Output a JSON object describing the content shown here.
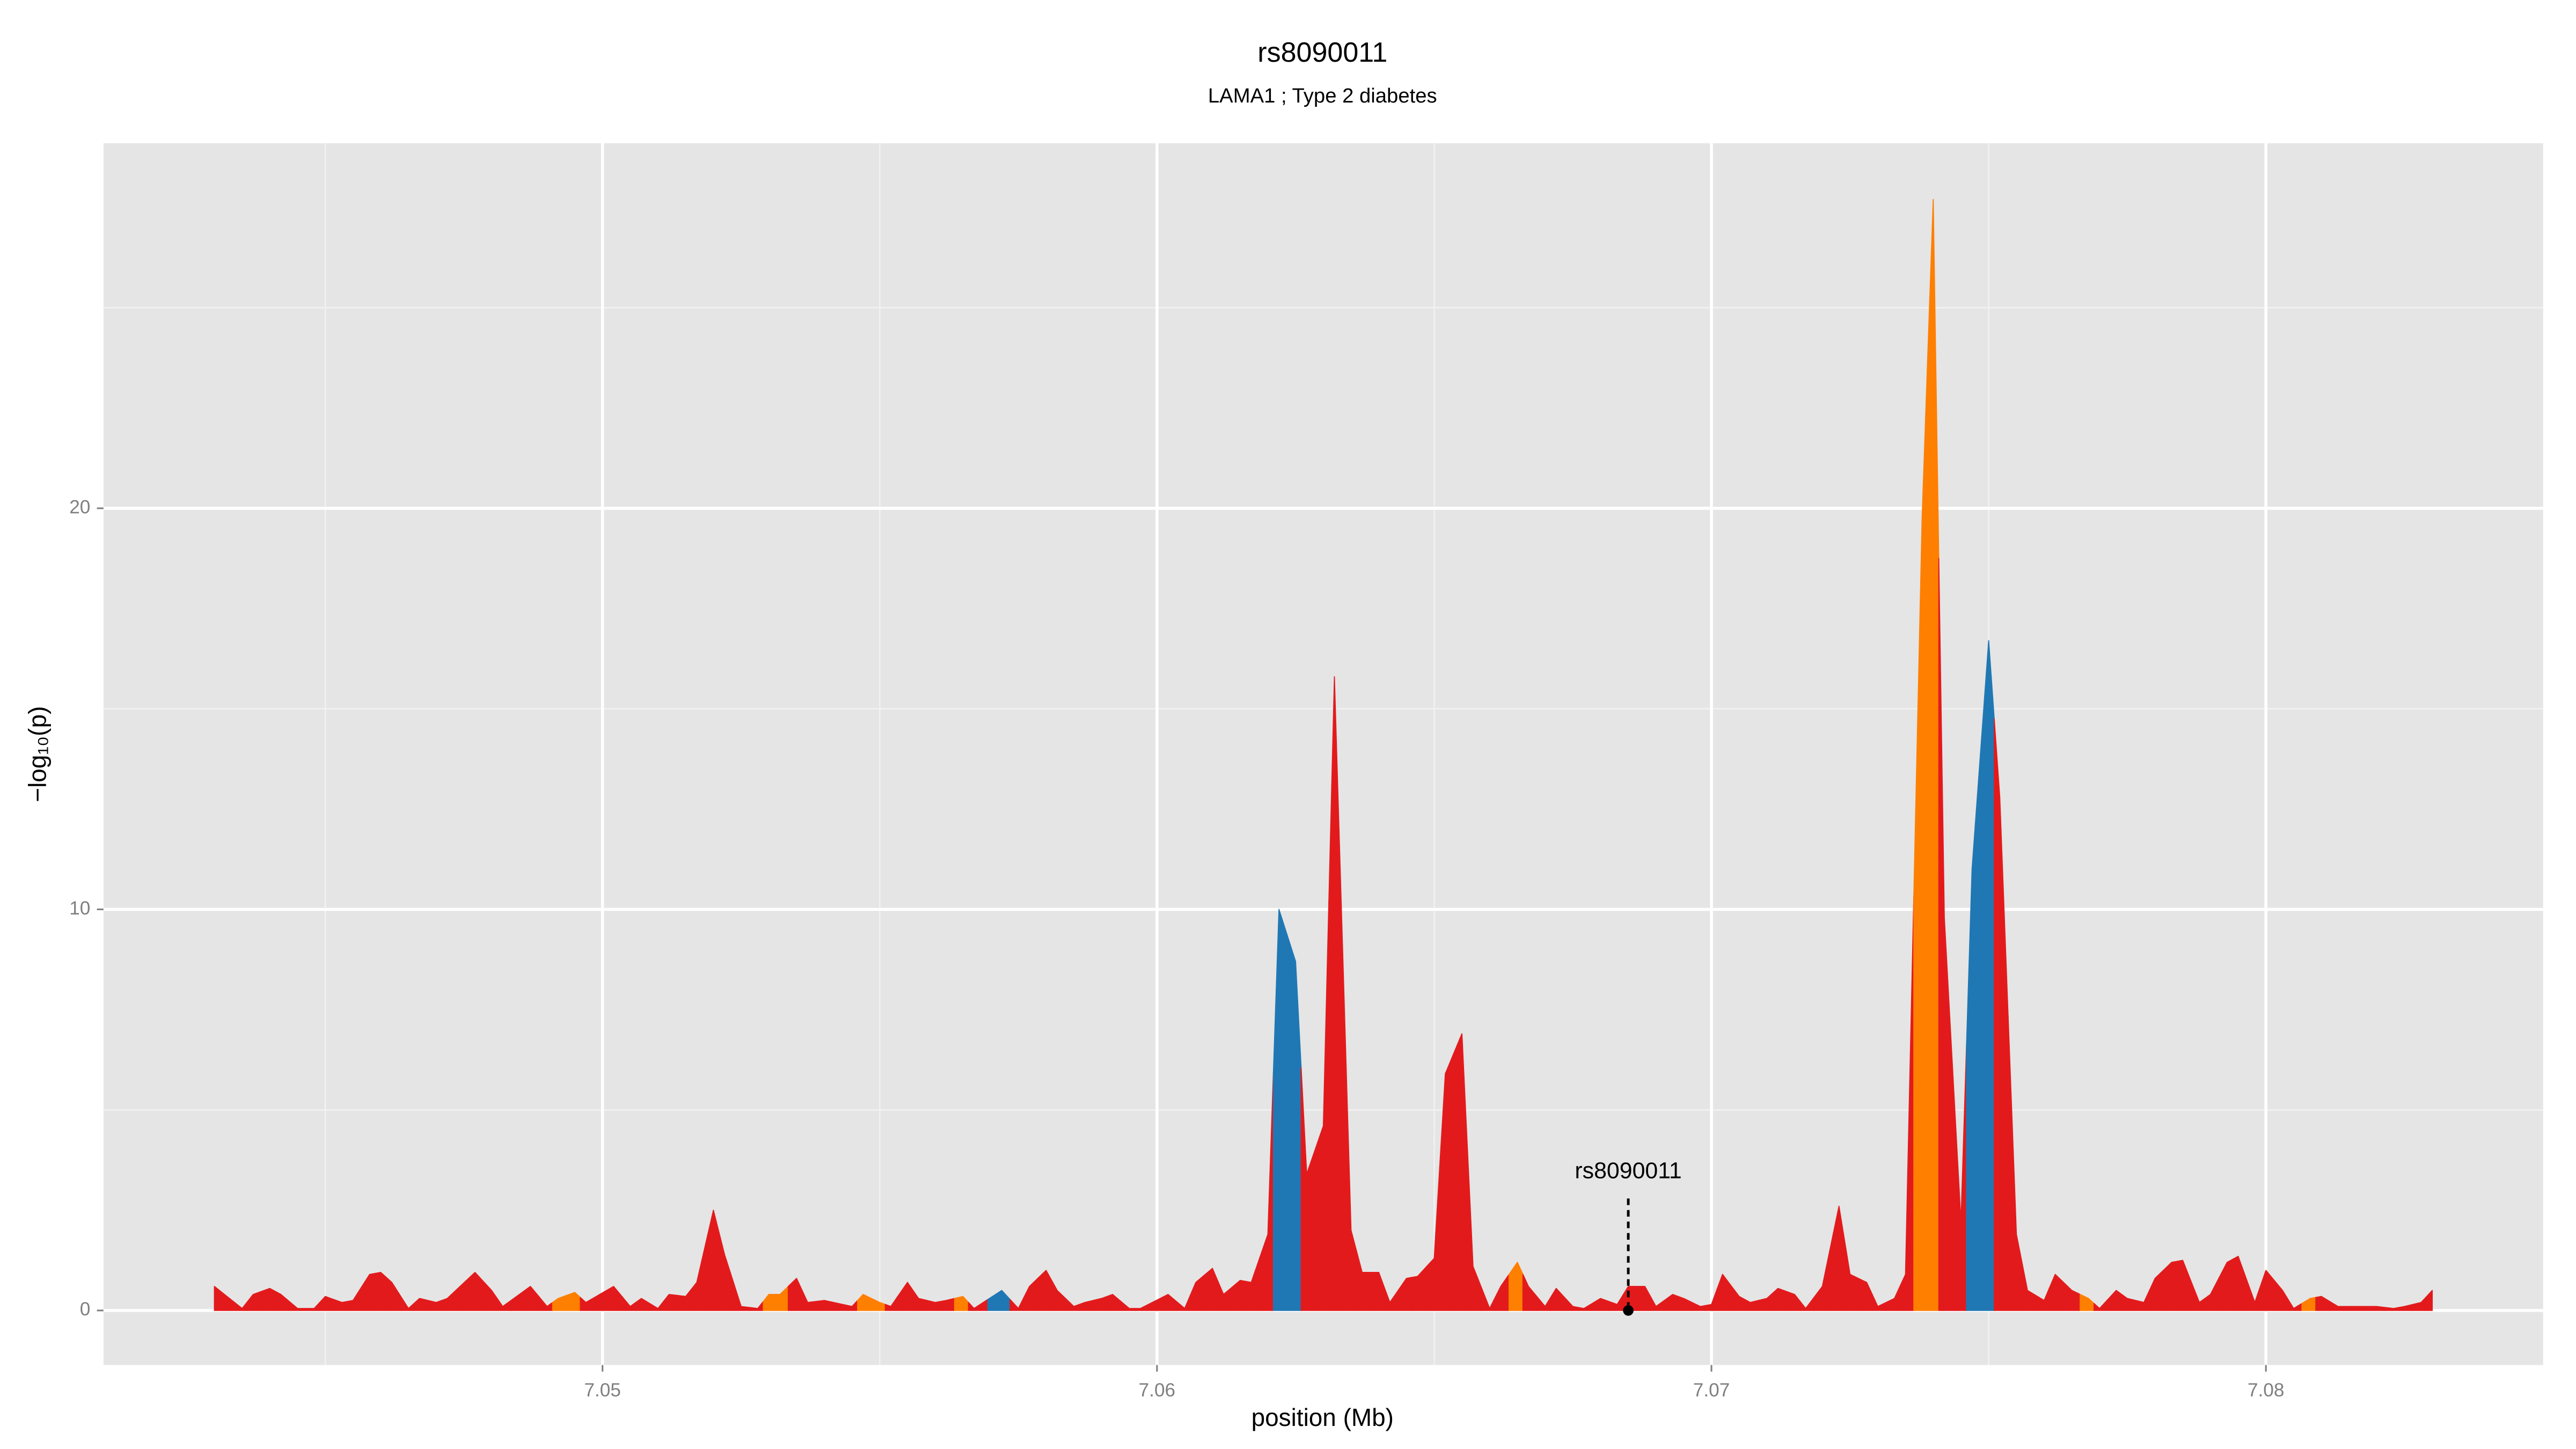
{
  "chart_data": {
    "type": "area",
    "title": "rs8090011",
    "subtitle": "LAMA1 ; Type 2 diabetes",
    "x_label": "position (Mb)",
    "y_label": "−log₁₀(p)",
    "xlim": [
      7.041,
      7.085
    ],
    "ylim": [
      -1.36,
      29.1
    ],
    "xticks": [
      7.05,
      7.06,
      7.07,
      7.08
    ],
    "yticks": [
      0,
      10,
      20
    ],
    "x_minor_ticks": [
      7.045,
      7.055,
      7.065,
      7.075
    ],
    "y_minor_ticks": [
      5,
      15,
      25
    ],
    "grid": true,
    "x": [
      7.043,
      7.0435,
      7.0437,
      7.044,
      7.0442,
      7.0445,
      7.0448,
      7.045,
      7.0453,
      7.0455,
      7.0458,
      7.046,
      7.0462,
      7.0465,
      7.0467,
      7.047,
      7.0472,
      7.0477,
      7.048,
      7.0482,
      7.0485,
      7.0487,
      7.049,
      7.0492,
      7.0495,
      7.0497,
      7.0502,
      7.0505,
      7.0507,
      7.051,
      7.0512,
      7.0515,
      7.0517,
      7.052,
      7.0522,
      7.0525,
      7.0528,
      7.053,
      7.0532,
      7.0535,
      7.0537,
      7.054,
      7.0545,
      7.0547,
      7.055,
      7.0552,
      7.0555,
      7.0557,
      7.056,
      7.0562,
      7.0565,
      7.0567,
      7.0572,
      7.0575,
      7.0577,
      7.058,
      7.0582,
      7.0585,
      7.0587,
      7.059,
      7.0592,
      7.0595,
      7.0597,
      7.0602,
      7.0605,
      7.0607,
      7.061,
      7.0612,
      7.0615,
      7.0617,
      7.062,
      7.0622,
      7.0625,
      7.0627,
      7.063,
      7.0632,
      7.0635,
      7.0637,
      7.064,
      7.0642,
      7.0645,
      7.0647,
      7.065,
      7.0652,
      7.0655,
      7.0657,
      7.066,
      7.0662,
      7.0665,
      7.0667,
      7.067,
      7.0672,
      7.0675,
      7.0677,
      7.068,
      7.0683,
      7.0685,
      7.0688,
      7.069,
      7.0693,
      7.0695,
      7.0698,
      7.07,
      7.0702,
      7.0705,
      7.0707,
      7.071,
      7.0712,
      7.0715,
      7.0717,
      7.072,
      7.0723,
      7.0725,
      7.0728,
      7.073,
      7.0733,
      7.0735,
      7.0738,
      7.074,
      7.0742,
      7.0745,
      7.0747,
      7.075,
      7.0752,
      7.0755,
      7.0757,
      7.076,
      7.0762,
      7.0765,
      7.0768,
      7.077,
      7.0773,
      7.0775,
      7.0778,
      7.078,
      7.0783,
      7.0785,
      7.0788,
      7.079,
      7.0793,
      7.0795,
      7.0798,
      7.08,
      7.0803,
      7.0805,
      7.0808,
      7.081,
      7.0813,
      7.0815,
      7.0818,
      7.082,
      7.0823,
      7.0825,
      7.0828,
      7.083
    ],
    "values": [
      0.6,
      0.05,
      0.4,
      0.55,
      0.4,
      0.05,
      0.05,
      0.35,
      0.2,
      0.25,
      0.9,
      0.95,
      0.7,
      0.05,
      0.3,
      0.2,
      0.3,
      0.95,
      0.5,
      0.1,
      0.4,
      0.6,
      0.1,
      0.3,
      0.45,
      0.2,
      0.6,
      0.1,
      0.3,
      0.05,
      0.4,
      0.35,
      0.7,
      2.5,
      1.4,
      0.1,
      0.05,
      0.4,
      0.4,
      0.8,
      0.2,
      0.25,
      0.1,
      0.4,
      0.2,
      0.1,
      0.7,
      0.3,
      0.2,
      0.25,
      0.35,
      0.05,
      0.5,
      0.05,
      0.6,
      1.0,
      0.5,
      0.1,
      0.2,
      0.3,
      0.4,
      0.05,
      0.05,
      0.4,
      0.05,
      0.7,
      1.05,
      0.4,
      0.75,
      0.7,
      1.9,
      10.0,
      8.7,
      3.4,
      4.6,
      15.8,
      2.0,
      0.95,
      0.95,
      0.2,
      0.8,
      0.85,
      1.3,
      5.9,
      6.9,
      1.1,
      0.05,
      0.6,
      1.2,
      0.6,
      0.1,
      0.55,
      0.1,
      0.05,
      0.3,
      0.15,
      0.6,
      0.6,
      0.1,
      0.4,
      0.3,
      0.1,
      0.15,
      0.9,
      0.35,
      0.2,
      0.3,
      0.55,
      0.4,
      0.05,
      0.6,
      2.6,
      0.9,
      0.7,
      0.1,
      0.3,
      0.9,
      19.8,
      27.7,
      9.8,
      2.2,
      11.0,
      16.7,
      12.8,
      1.9,
      0.5,
      0.25,
      0.9,
      0.5,
      0.3,
      0.05,
      0.5,
      0.3,
      0.2,
      0.8,
      1.2,
      1.25,
      0.2,
      0.4,
      1.2,
      1.35,
      0.2,
      1.0,
      0.5,
      0.05,
      0.3,
      0.35,
      0.1,
      0.1,
      0.1,
      0.1,
      0.05,
      0.1,
      0.2,
      0.5
    ],
    "colors": [
      "#e31a1c",
      "#e31a1c",
      "#e31a1c",
      "#e31a1c",
      "#e31a1c",
      "#e31a1c",
      "#e31a1c",
      "#e31a1c",
      "#e31a1c",
      "#e31a1c",
      "#e31a1c",
      "#e31a1c",
      "#e31a1c",
      "#e31a1c",
      "#e31a1c",
      "#e31a1c",
      "#e31a1c",
      "#e31a1c",
      "#e31a1c",
      "#e31a1c",
      "#e31a1c",
      "#e31a1c",
      "#e31a1c",
      "#ff7f00",
      "#ff7f00",
      "#e31a1c",
      "#e31a1c",
      "#e31a1c",
      "#e31a1c",
      "#e31a1c",
      "#e31a1c",
      "#e31a1c",
      "#e31a1c",
      "#e31a1c",
      "#e31a1c",
      "#e31a1c",
      "#e31a1c",
      "#ff7f00",
      "#ff7f00",
      "#e31a1c",
      "#e31a1c",
      "#e31a1c",
      "#e31a1c",
      "#ff7f00",
      "#ff7f00",
      "#e31a1c",
      "#e31a1c",
      "#e31a1c",
      "#e31a1c",
      "#e31a1c",
      "#ff7f00",
      "#e31a1c",
      "#1f78b4",
      "#e31a1c",
      "#e31a1c",
      "#e31a1c",
      "#e31a1c",
      "#e31a1c",
      "#e31a1c",
      "#e31a1c",
      "#e31a1c",
      "#e31a1c",
      "#e31a1c",
      "#e31a1c",
      "#e31a1c",
      "#e31a1c",
      "#e31a1c",
      "#e31a1c",
      "#e31a1c",
      "#e31a1c",
      "#e31a1c",
      "#1f78b4",
      "#1f78b4",
      "#e31a1c",
      "#e31a1c",
      "#e31a1c",
      "#e31a1c",
      "#e31a1c",
      "#e31a1c",
      "#e31a1c",
      "#e31a1c",
      "#e31a1c",
      "#e31a1c",
      "#e31a1c",
      "#e31a1c",
      "#e31a1c",
      "#e31a1c",
      "#e31a1c",
      "#ff7f00",
      "#e31a1c",
      "#e31a1c",
      "#e31a1c",
      "#e31a1c",
      "#e31a1c",
      "#e31a1c",
      "#e31a1c",
      "#e31a1c",
      "#e31a1c",
      "#e31a1c",
      "#e31a1c",
      "#e31a1c",
      "#e31a1c",
      "#e31a1c",
      "#e31a1c",
      "#e31a1c",
      "#e31a1c",
      "#e31a1c",
      "#e31a1c",
      "#e31a1c",
      "#e31a1c",
      "#e31a1c",
      "#e31a1c",
      "#e31a1c",
      "#e31a1c",
      "#e31a1c",
      "#e31a1c",
      "#e31a1c",
      "#ff7f00",
      "#ff7f00",
      "#e31a1c",
      "#e31a1c",
      "#1f78b4",
      "#1f78b4",
      "#e31a1c",
      "#e31a1c",
      "#e31a1c",
      "#e31a1c",
      "#e31a1c",
      "#e31a1c",
      "#ff7f00",
      "#e31a1c",
      "#e31a1c",
      "#e31a1c",
      "#e31a1c",
      "#e31a1c",
      "#e31a1c",
      "#e31a1c",
      "#e31a1c",
      "#e31a1c",
      "#e31a1c",
      "#e31a1c",
      "#e31a1c",
      "#e31a1c",
      "#e31a1c",
      "#e31a1c",
      "#ff7f00",
      "#e31a1c",
      "#e31a1c",
      "#e31a1c",
      "#e31a1c",
      "#e31a1c",
      "#e31a1c",
      "#e31a1c",
      "#e31a1c",
      "#e31a1c"
    ],
    "annotations": [
      {
        "text": "rs8090011",
        "x": 7.0685,
        "y": 0
      }
    ]
  }
}
